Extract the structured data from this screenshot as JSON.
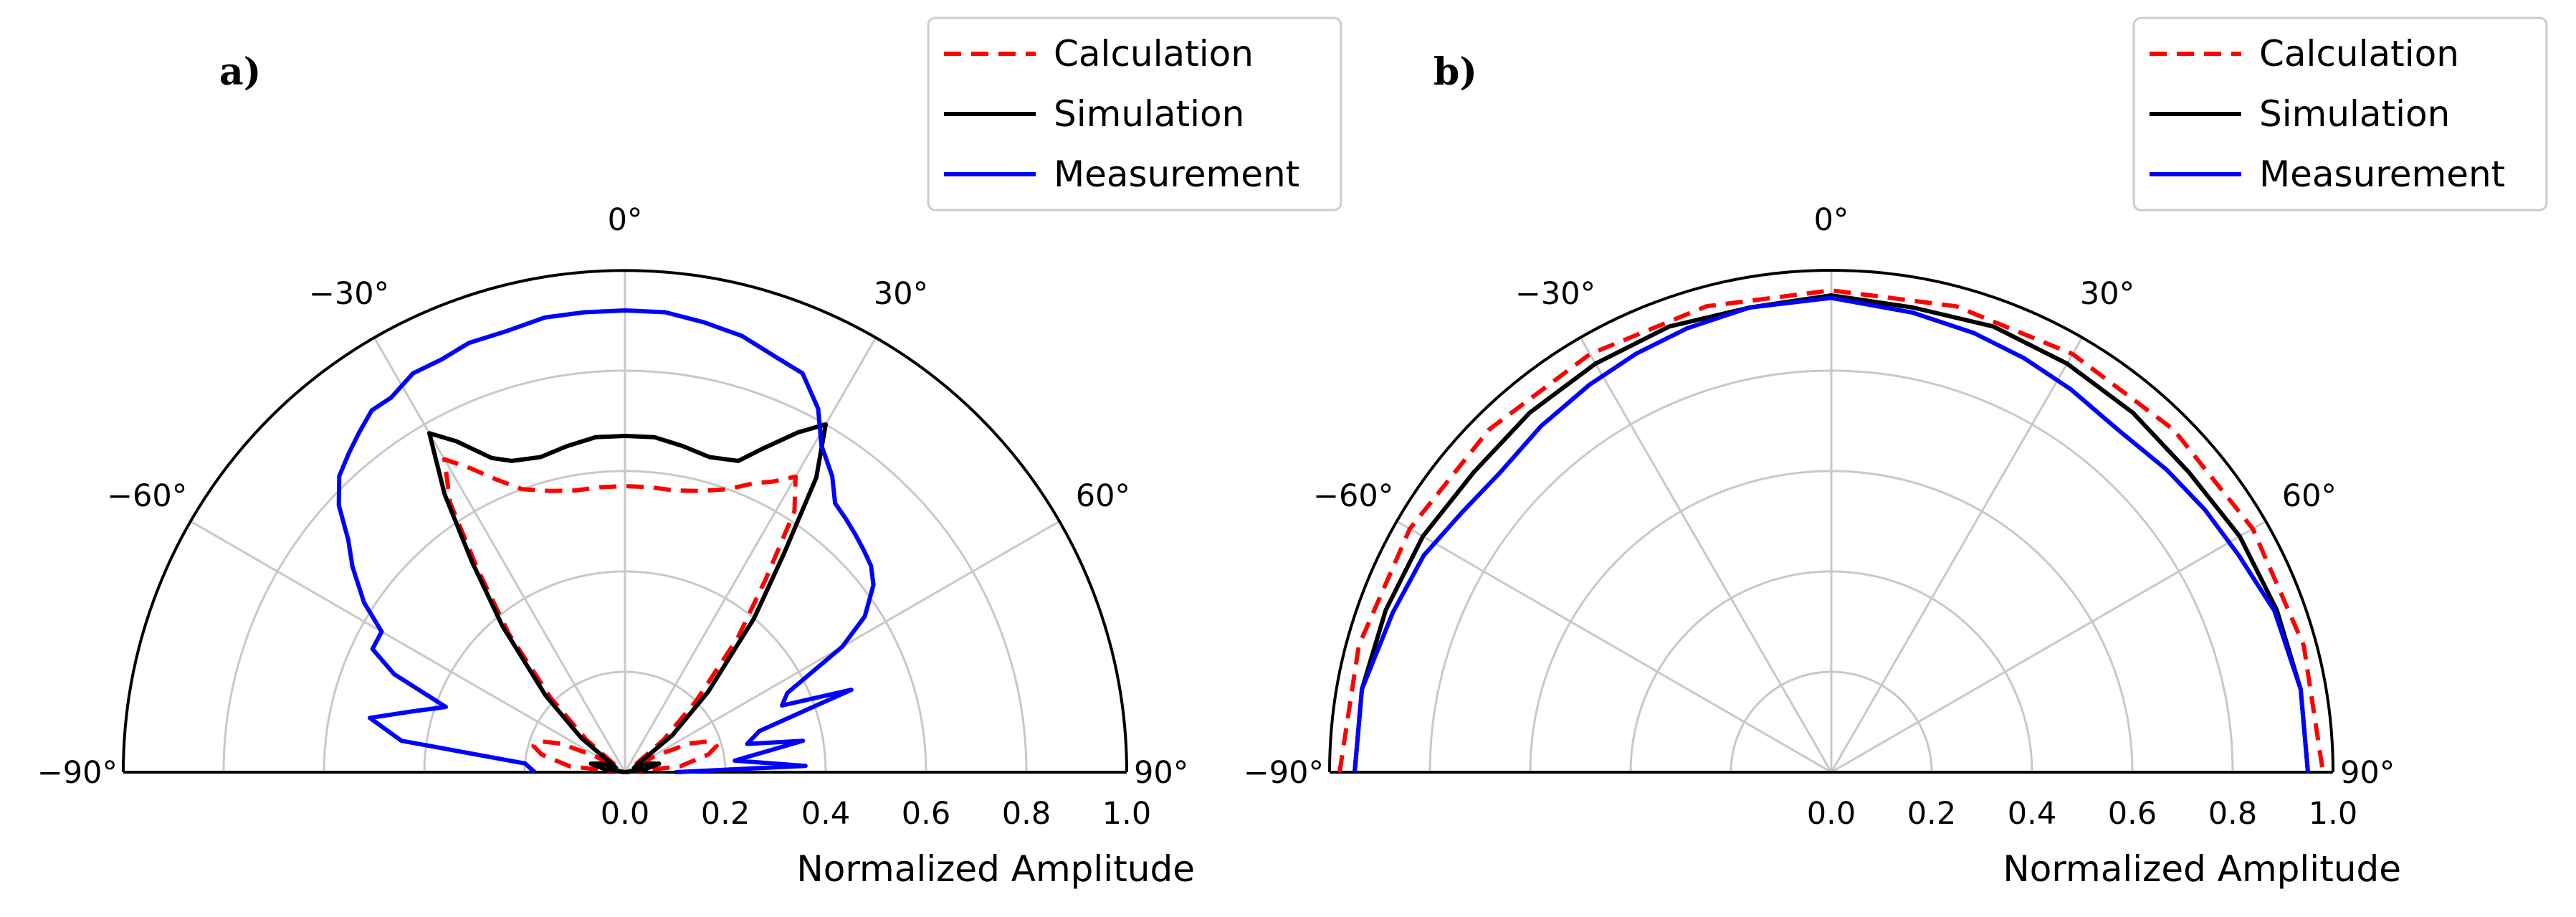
{
  "chart_data": [
    {
      "type": "line",
      "projection": "polar-half",
      "panel_label": "a)",
      "theta_range_deg": [
        -90,
        90
      ],
      "r_range": [
        0,
        1.0
      ],
      "theta_ticks": [
        "−90°",
        "−60°",
        "−30°",
        "0°",
        "30°",
        "60°",
        "90°"
      ],
      "r_ticks": [
        "0.0",
        "0.2",
        "0.4",
        "0.6",
        "0.8",
        "1.0"
      ],
      "r_label": "Normalized Amplitude",
      "legend": [
        "Calculation",
        "Simulation",
        "Measurement"
      ],
      "series": [
        {
          "name": "Calculation",
          "style": "dashed",
          "color": "#ff0000",
          "theta_deg": [
            -90,
            -84,
            -78,
            -74,
            -70,
            -66,
            -62,
            -58,
            -55,
            -50,
            -45,
            -40,
            -36,
            -33,
            -30,
            -27,
            -24,
            -20,
            -15,
            -10,
            -5,
            0,
            5,
            10,
            15,
            20,
            24,
            27,
            30,
            33,
            36,
            40,
            45,
            50,
            55,
            58,
            62,
            66,
            70,
            74,
            78,
            84,
            90
          ],
          "r": [
            0.0,
            0.11,
            0.17,
            0.19,
            0.18,
            0.14,
            0.07,
            0.02,
            0.02,
            0.1,
            0.21,
            0.36,
            0.5,
            0.64,
            0.72,
            0.68,
            0.64,
            0.6,
            0.58,
            0.57,
            0.57,
            0.57,
            0.57,
            0.57,
            0.58,
            0.6,
            0.63,
            0.65,
            0.68,
            0.62,
            0.48,
            0.35,
            0.2,
            0.1,
            0.02,
            0.02,
            0.07,
            0.14,
            0.18,
            0.19,
            0.17,
            0.11,
            0.0
          ]
        },
        {
          "name": "Simulation",
          "style": "solid",
          "color": "#000000",
          "theta_deg": [
            -90,
            -82,
            -76,
            -70,
            -64,
            -58,
            -52,
            -46,
            -40,
            -36,
            -33,
            -30,
            -27,
            -23,
            -20,
            -15,
            -10,
            -5,
            0,
            5,
            10,
            15,
            20,
            23,
            27,
            30,
            33,
            36,
            40,
            46,
            52,
            58,
            64,
            70,
            76,
            82,
            90
          ],
          "r": [
            0.0,
            0.04,
            0.07,
            0.05,
            0.02,
            0.03,
            0.11,
            0.22,
            0.38,
            0.52,
            0.66,
            0.78,
            0.74,
            0.68,
            0.66,
            0.65,
            0.66,
            0.67,
            0.67,
            0.67,
            0.66,
            0.65,
            0.66,
            0.7,
            0.76,
            0.8,
            0.7,
            0.54,
            0.4,
            0.23,
            0.12,
            0.03,
            0.02,
            0.05,
            0.07,
            0.04,
            0.0
          ]
        },
        {
          "name": "Measurement",
          "style": "solid",
          "color": "#0000ff",
          "theta_deg": [
            -90,
            -85,
            -82,
            -78,
            -74,
            -70,
            -67,
            -64,
            -60,
            -57,
            -53,
            -50,
            -47,
            -44,
            -41,
            -38,
            -35,
            -32,
            -28,
            -24,
            -20,
            -15,
            -10,
            -5,
            0,
            5,
            10,
            15,
            20,
            24,
            28,
            31,
            35,
            38,
            41,
            44,
            47,
            50,
            53,
            57,
            60,
            64,
            67,
            70,
            73,
            77,
            80,
            84,
            88,
            90
          ],
          "r": [
            0.18,
            0.2,
            0.45,
            0.52,
            0.44,
            0.38,
            0.5,
            0.56,
            0.56,
            0.62,
            0.68,
            0.72,
            0.78,
            0.82,
            0.84,
            0.86,
            0.88,
            0.88,
            0.9,
            0.9,
            0.91,
            0.91,
            0.92,
            0.92,
            0.92,
            0.92,
            0.91,
            0.9,
            0.88,
            0.87,
            0.82,
            0.76,
            0.72,
            0.68,
            0.67,
            0.66,
            0.65,
            0.64,
            0.62,
            0.57,
            0.5,
            0.36,
            0.34,
            0.48,
            0.28,
            0.25,
            0.36,
            0.22,
            0.36,
            0.1
          ]
        }
      ]
    },
    {
      "type": "line",
      "projection": "polar-half",
      "panel_label": "b)",
      "theta_range_deg": [
        -90,
        90
      ],
      "r_range": [
        0,
        1.0
      ],
      "theta_ticks": [
        "−90°",
        "−60°",
        "−30°",
        "0°",
        "30°",
        "60°",
        "90°"
      ],
      "r_ticks": [
        "0.0",
        "0.2",
        "0.4",
        "0.6",
        "0.8",
        "1.0"
      ],
      "r_label": "Normalized Amplitude",
      "legend": [
        "Calculation",
        "Simulation",
        "Measurement"
      ],
      "series": [
        {
          "name": "Calculation",
          "style": "dashed",
          "color": "#ff0000",
          "theta_deg": [
            -90,
            -75,
            -60,
            -45,
            -30,
            -15,
            0,
            15,
            30,
            45,
            60,
            75,
            90
          ],
          "r": [
            0.98,
            0.975,
            0.97,
            0.965,
            0.962,
            0.961,
            0.96,
            0.961,
            0.962,
            0.965,
            0.97,
            0.975,
            0.98
          ]
        },
        {
          "name": "Simulation",
          "style": "solid",
          "color": "#000000",
          "theta_deg": [
            -90,
            -80,
            -70,
            -60,
            -50,
            -40,
            -30,
            -20,
            -10,
            0,
            10,
            20,
            30,
            40,
            50,
            60,
            70,
            80,
            90
          ],
          "r": [
            0.95,
            0.95,
            0.945,
            0.94,
            0.93,
            0.935,
            0.94,
            0.945,
            0.94,
            0.95,
            0.94,
            0.945,
            0.94,
            0.935,
            0.93,
            0.94,
            0.945,
            0.95,
            0.95
          ]
        },
        {
          "name": "Measurement",
          "style": "solid",
          "color": "#0000ff",
          "theta_deg": [
            -90,
            -80,
            -70,
            -62,
            -55,
            -48,
            -40,
            -32,
            -25,
            -18,
            -10,
            0,
            10,
            18,
            25,
            32,
            40,
            48,
            55,
            62,
            70,
            80,
            90
          ],
          "r": [
            0.95,
            0.95,
            0.93,
            0.92,
            0.9,
            0.89,
            0.9,
            0.91,
            0.92,
            0.93,
            0.94,
            0.945,
            0.93,
            0.92,
            0.91,
            0.9,
            0.89,
            0.9,
            0.91,
            0.92,
            0.94,
            0.95,
            0.95
          ]
        }
      ]
    }
  ]
}
